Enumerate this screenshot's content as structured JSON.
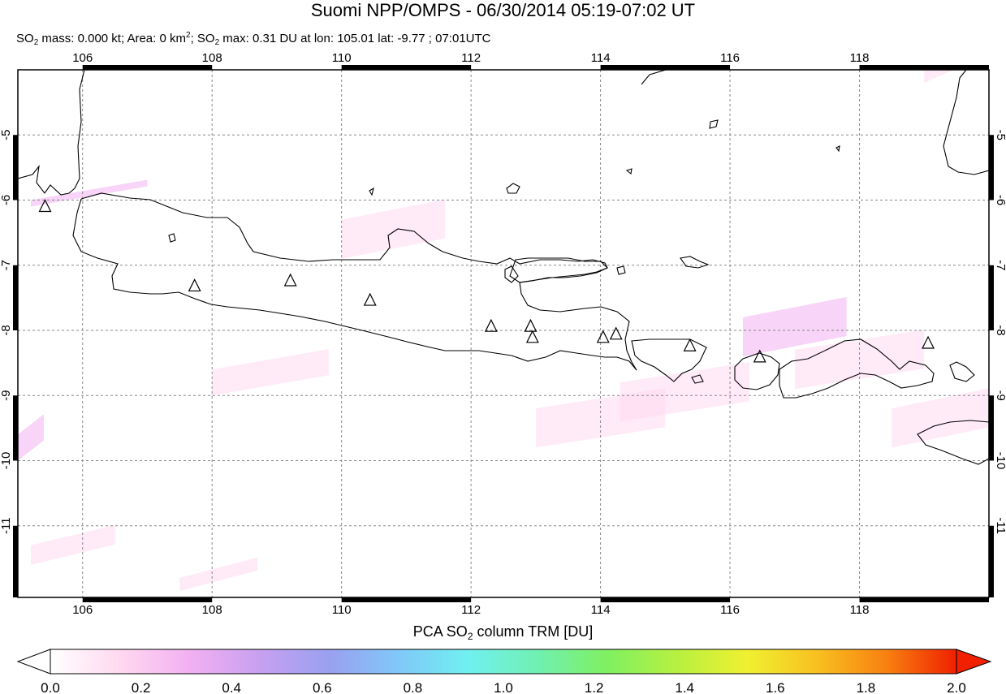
{
  "title": "Suomi NPP/OMPS - 06/30/2014 05:19-07:02 UT",
  "subtitle": {
    "so2_1": "SO",
    "sub_1": "2",
    "mass_text": " mass: 0.000 kt; Area: 0 km",
    "sup_2": "2",
    "sep": "; SO",
    "sub_2": "2",
    "max_text": " max: 0.31 DU at lon: 105.01 lat: -9.77 ; 07:01UTC"
  },
  "map": {
    "lon_min": 105.0,
    "lon_max": 120.0,
    "lat_min": -12.1,
    "lat_max": -4.0,
    "lon_ticks": [
      106,
      108,
      110,
      112,
      114,
      116,
      118
    ],
    "lon_tick_labels": [
      "106",
      "108",
      "110",
      "112",
      "114",
      "116",
      "118"
    ],
    "lat_ticks": [
      -5,
      -6,
      -7,
      -8,
      -9,
      -10,
      -11
    ],
    "lat_tick_labels": [
      "-5",
      "-6",
      "-7",
      "-8",
      "-9",
      "-10",
      "-11"
    ],
    "grid": true,
    "coastline_color": "#000000",
    "volcano_marker": "triangle",
    "volcanoes": [
      {
        "lon": 105.42,
        "lat": -6.1
      },
      {
        "lon": 107.73,
        "lat": -7.32
      },
      {
        "lon": 109.21,
        "lat": -7.24
      },
      {
        "lon": 110.44,
        "lat": -7.54
      },
      {
        "lon": 112.31,
        "lat": -7.94
      },
      {
        "lon": 112.92,
        "lat": -7.94
      },
      {
        "lon": 112.95,
        "lat": -8.11
      },
      {
        "lon": 114.04,
        "lat": -8.11
      },
      {
        "lon": 114.24,
        "lat": -8.06
      },
      {
        "lon": 115.38,
        "lat": -8.24
      },
      {
        "lon": 116.46,
        "lat": -8.41
      },
      {
        "lon": 119.06,
        "lat": -8.2
      }
    ],
    "so2_patches": [
      {
        "lon0": 105.2,
        "lat0": -6.0,
        "lon1": 107.0,
        "lat1": -6.1,
        "value": 0.25
      },
      {
        "lon0": 110.0,
        "lat0": -6.3,
        "lon1": 111.6,
        "lat1": -6.9,
        "value": 0.2
      },
      {
        "lon0": 116.2,
        "lat0": -7.8,
        "lon1": 117.8,
        "lat1": -8.4,
        "value": 0.25
      },
      {
        "lon0": 105.0,
        "lat0": -9.6,
        "lon1": 105.4,
        "lat1": -10.0,
        "value": 0.31
      },
      {
        "lon0": 114.3,
        "lat0": -8.8,
        "lon1": 116.3,
        "lat1": -9.4,
        "value": 0.18
      },
      {
        "lon0": 117.0,
        "lat0": -8.3,
        "lon1": 119.0,
        "lat1": -8.9,
        "value": 0.2
      },
      {
        "lon0": 113.0,
        "lat0": -9.2,
        "lon1": 115.0,
        "lat1": -9.8,
        "value": 0.1
      },
      {
        "lon0": 108.0,
        "lat0": -8.6,
        "lon1": 109.8,
        "lat1": -9.0,
        "value": 0.08
      },
      {
        "lon0": 107.5,
        "lat0": -11.8,
        "lon1": 108.7,
        "lat1": -12.0,
        "value": 0.1
      },
      {
        "lon0": 115.0,
        "lat0": -5.2,
        "lon1": 116.4,
        "lat1": -5.8,
        "value": 0.06
      },
      {
        "lon0": 118.5,
        "lat0": -9.2,
        "lon1": 120.0,
        "lat1": -9.8,
        "value": 0.1
      },
      {
        "lon0": 111.5,
        "lat0": -5.0,
        "lon1": 113.0,
        "lat1": -5.6,
        "value": 0.05
      },
      {
        "lon0": 105.2,
        "lat0": -11.3,
        "lon1": 106.5,
        "lat1": -11.6,
        "value": 0.08
      },
      {
        "lon0": 119.0,
        "lat0": -4.0,
        "lon1": 119.7,
        "lat1": -4.2,
        "value": 0.1
      }
    ]
  },
  "colorbar": {
    "title_pre": "PCA SO",
    "title_sub": "2",
    "title_post": " column TRM [DU]",
    "min": 0.0,
    "max": 2.0,
    "tick_values": [
      0.0,
      0.2,
      0.4,
      0.6,
      0.8,
      1.0,
      1.2,
      1.4,
      1.6,
      1.8,
      2.0
    ],
    "tick_labels": [
      "0.0",
      "0.2",
      "0.4",
      "0.6",
      "0.8",
      "1.0",
      "1.2",
      "1.4",
      "1.6",
      "1.8",
      "2.0"
    ],
    "colors": [
      "#ffffff",
      "#ffd8f0",
      "#f2b0f2",
      "#c8a0f0",
      "#9aa0f0",
      "#80c8f8",
      "#70f0f0",
      "#70f0b0",
      "#80f060",
      "#b8f040",
      "#f0f030",
      "#f8c020",
      "#f88010",
      "#f02000"
    ],
    "under_color": "#ffffff",
    "over_color": "#f02000"
  }
}
